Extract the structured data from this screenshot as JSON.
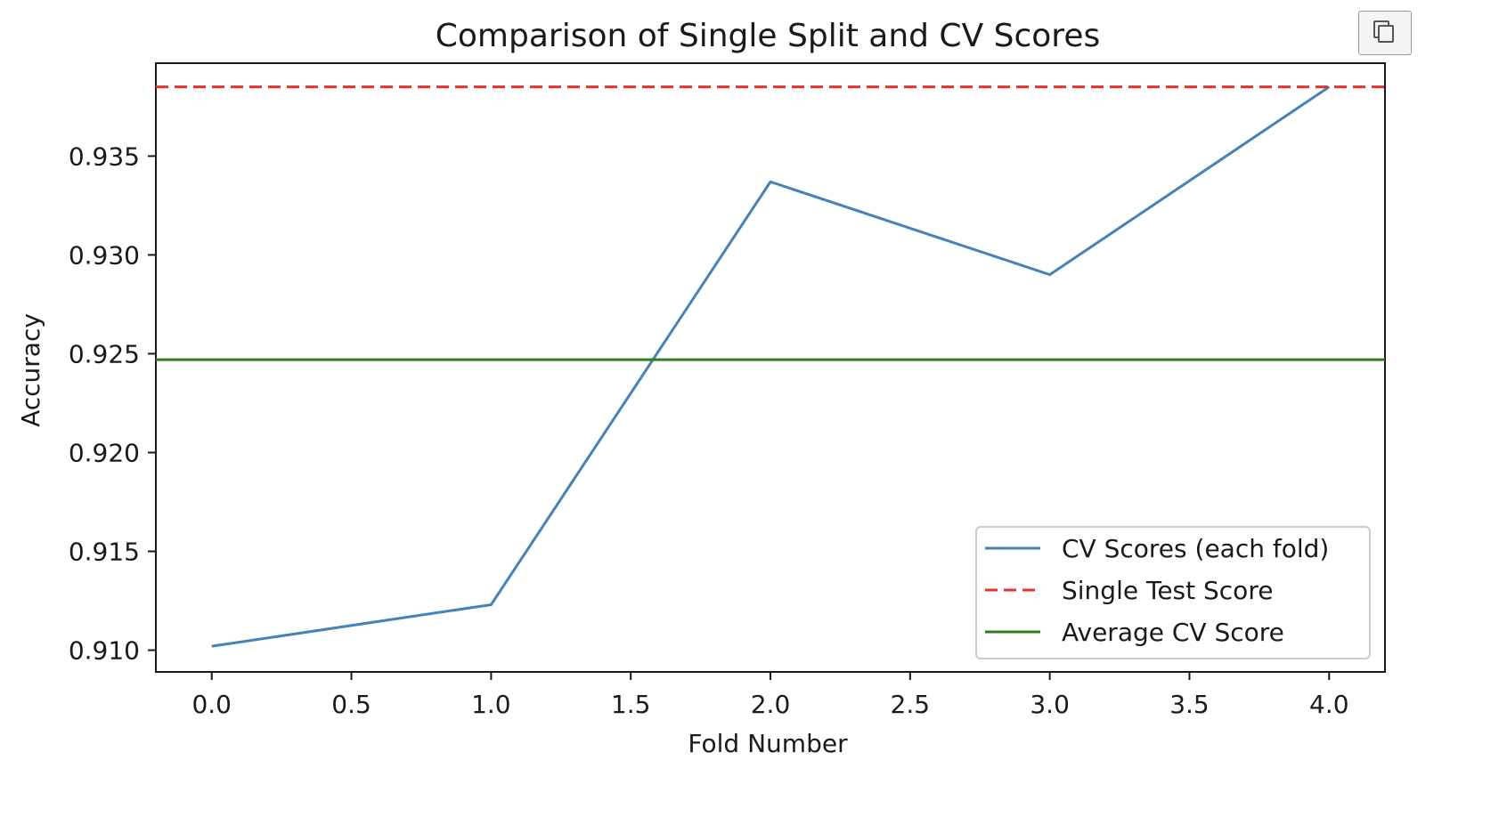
{
  "chart_data": {
    "type": "line",
    "title": "Comparison of Single Split and CV Scores",
    "xlabel": "Fold Number",
    "ylabel": "Accuracy",
    "xlim": [
      -0.2,
      4.2
    ],
    "ylim": [
      0.9089,
      0.9397
    ],
    "x_ticks": [
      0.0,
      0.5,
      1.0,
      1.5,
      2.0,
      2.5,
      3.0,
      3.5,
      4.0
    ],
    "x_tick_labels": [
      "0.0",
      "0.5",
      "1.0",
      "1.5",
      "2.0",
      "2.5",
      "3.0",
      "3.5",
      "4.0"
    ],
    "y_ticks": [
      0.91,
      0.915,
      0.92,
      0.925,
      0.93,
      0.935
    ],
    "y_tick_labels": [
      "0.910",
      "0.915",
      "0.920",
      "0.925",
      "0.930",
      "0.935"
    ],
    "grid": false,
    "legend_position": "lower-right",
    "series": [
      {
        "name": "CV Scores (each fold)",
        "style": "solid",
        "color": "#4682b4",
        "x": [
          0,
          1,
          2,
          3,
          4
        ],
        "values": [
          0.9102,
          0.9123,
          0.9337,
          0.929,
          0.9385
        ]
      },
      {
        "name": "Single Test Score",
        "style": "dashed",
        "color": "#e8312a",
        "hline": 0.9385
      },
      {
        "name": "Average CV Score",
        "style": "solid",
        "color": "#2e7d1e",
        "hline": 0.9247
      }
    ]
  }
}
